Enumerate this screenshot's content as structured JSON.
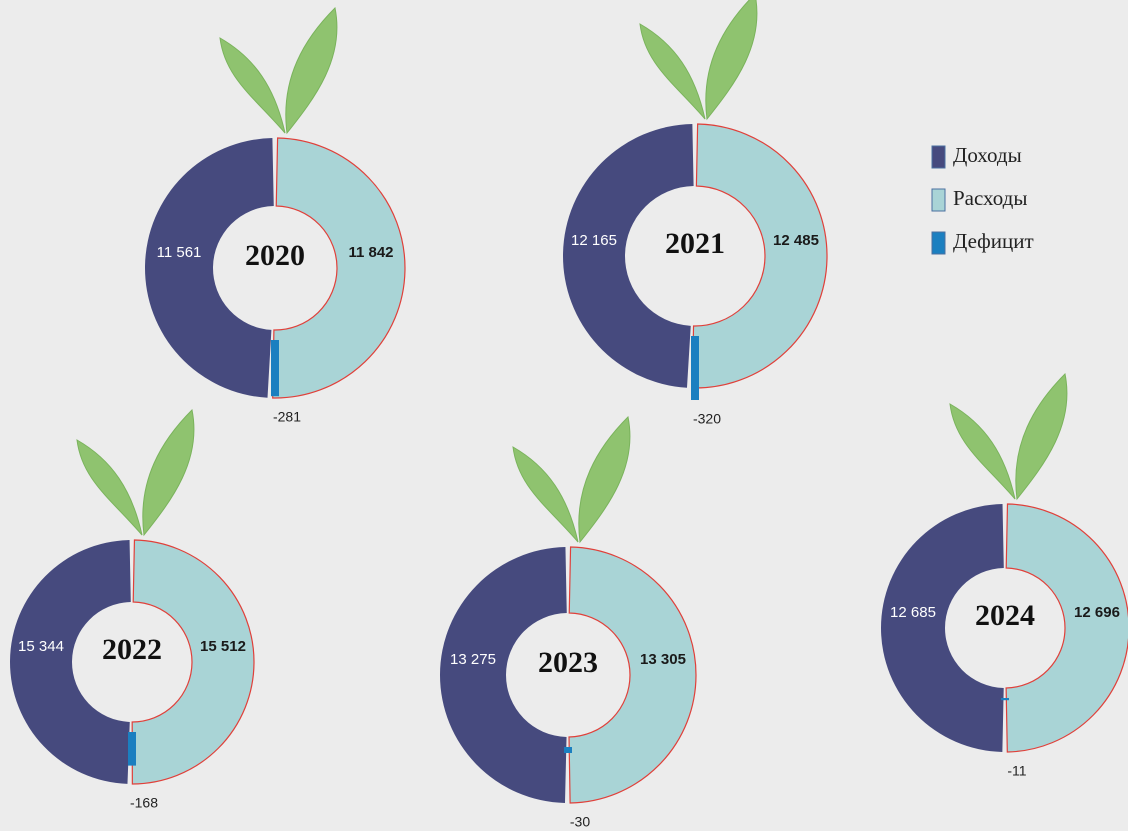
{
  "chart_data": [
    {
      "type": "donut",
      "title": "2020",
      "values": [
        11561,
        11842,
        -281
      ],
      "value_labels": [
        "11 561",
        "11 842",
        "-281"
      ]
    },
    {
      "type": "donut",
      "title": "2021",
      "values": [
        12165,
        12485,
        -320
      ],
      "value_labels": [
        "12 165",
        "12 485",
        "-320"
      ]
    },
    {
      "type": "donut",
      "title": "2022",
      "values": [
        15344,
        15512,
        -168
      ],
      "value_labels": [
        "15 344",
        "15 512",
        "-168"
      ]
    },
    {
      "type": "donut",
      "title": "2023",
      "values": [
        13275,
        13305,
        -30
      ],
      "value_labels": [
        "13 275",
        "13 305",
        "-30"
      ]
    },
    {
      "type": "donut",
      "title": "2024",
      "values": [
        12685,
        12696,
        -11
      ],
      "value_labels": [
        "12 685",
        "12 696",
        "-11"
      ]
    }
  ],
  "legend": {
    "items": [
      "Доходы",
      "Расходы",
      "Дефицит"
    ],
    "colors": [
      "#464a7e",
      "#a9d4d6",
      "#1b7fc0"
    ]
  }
}
